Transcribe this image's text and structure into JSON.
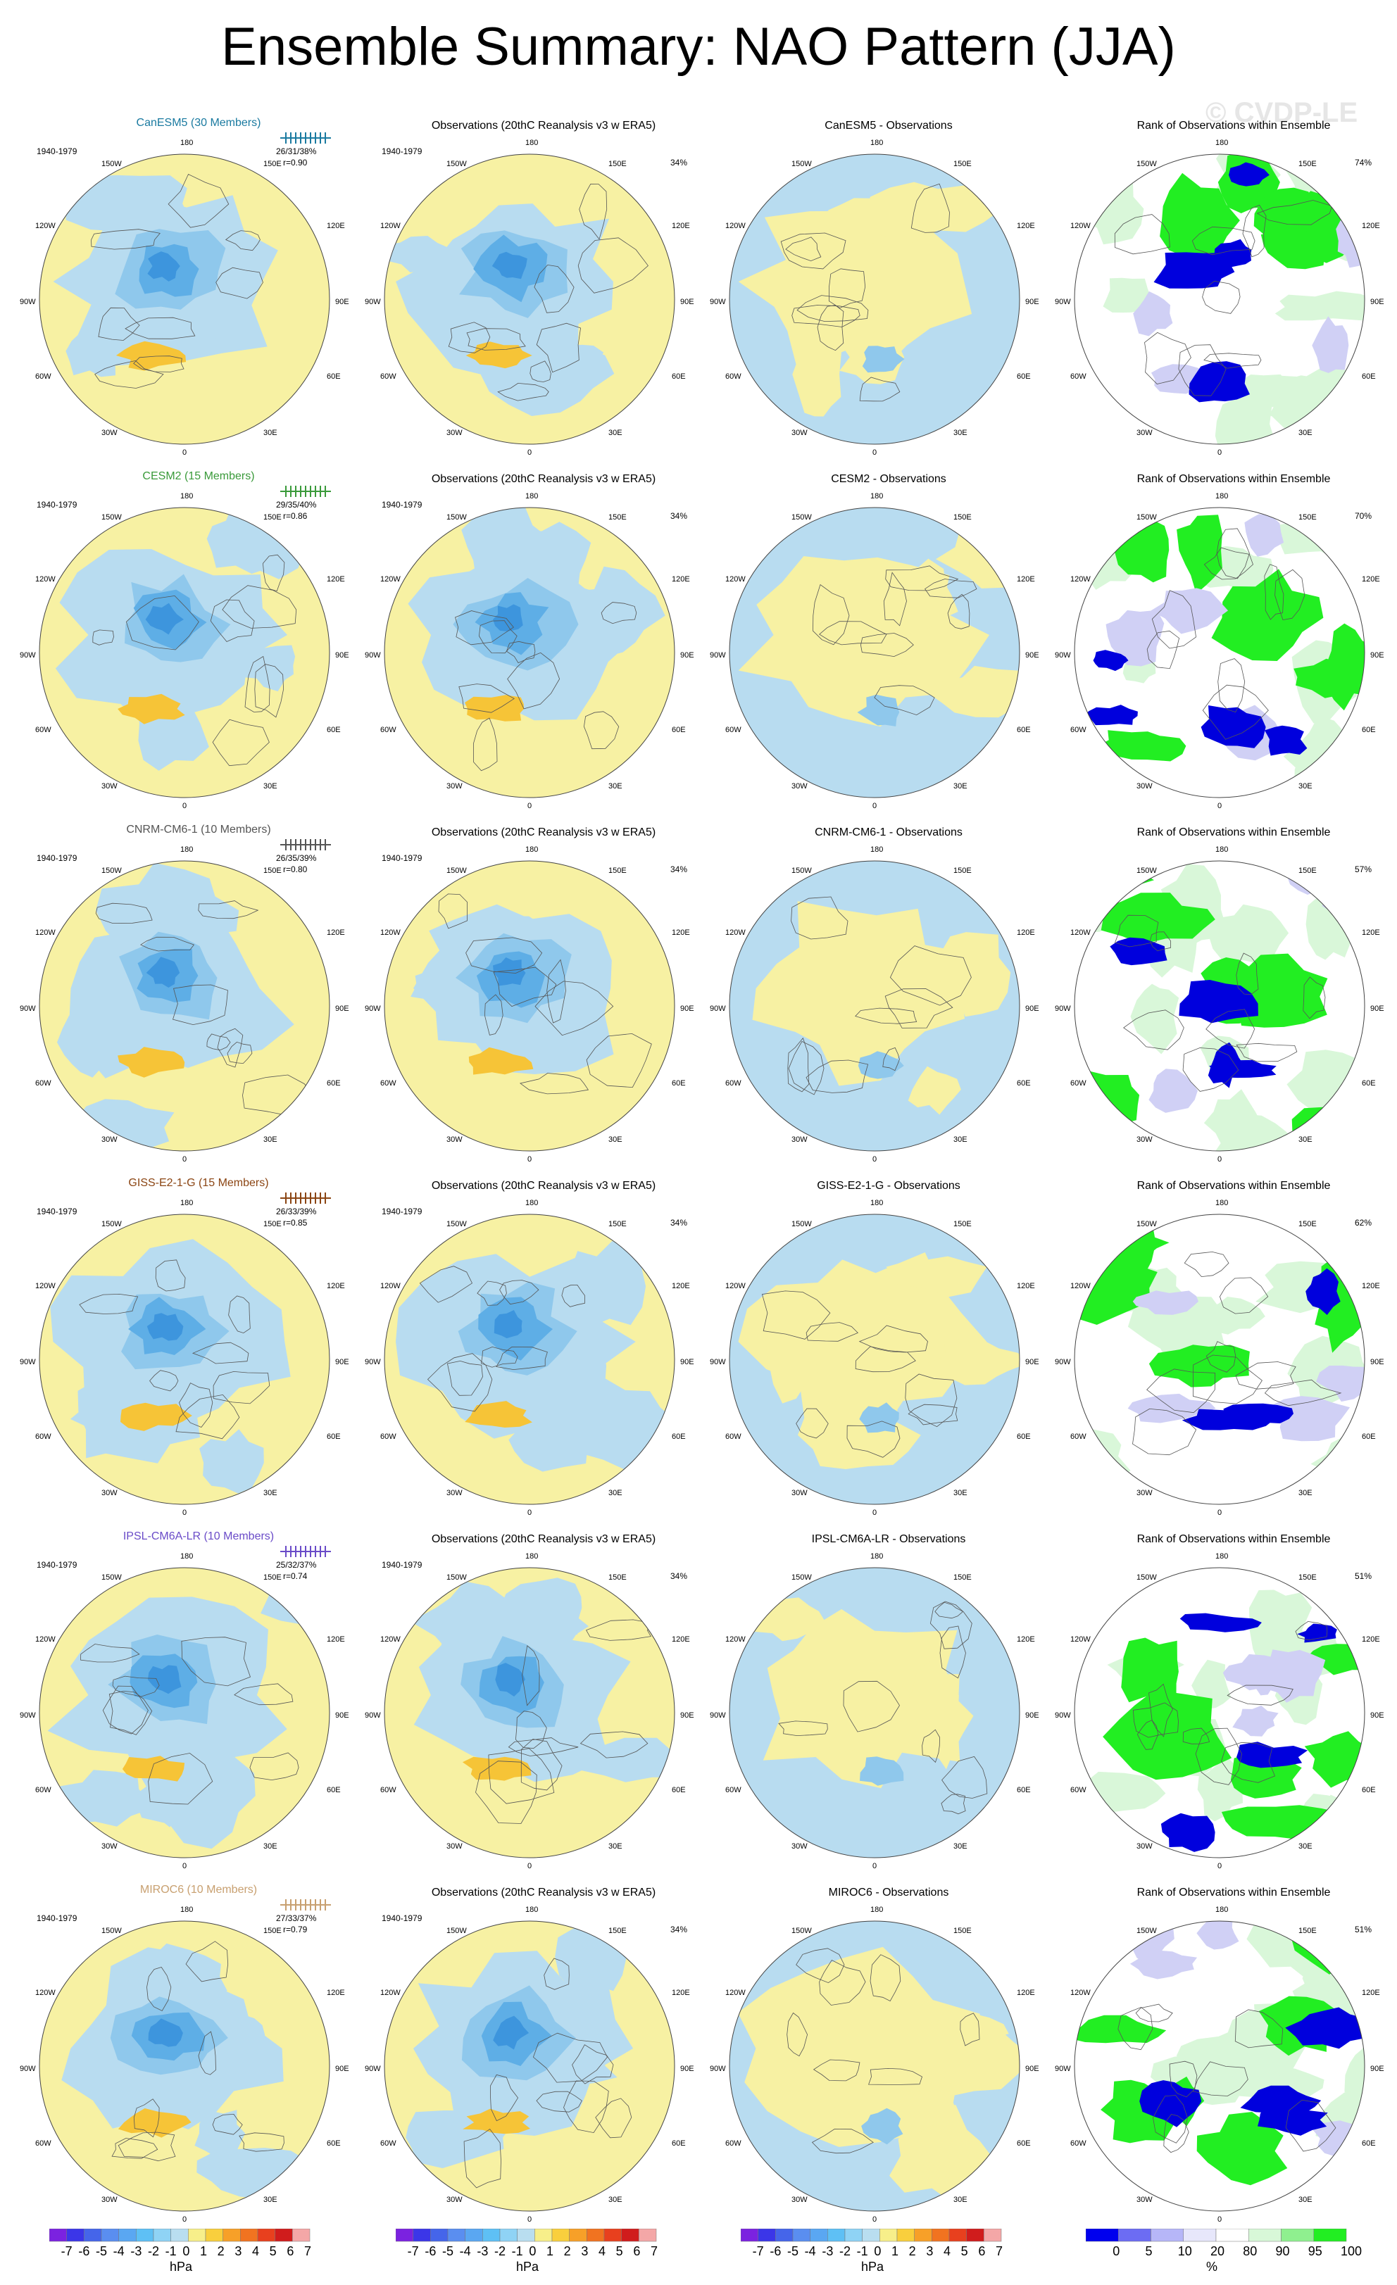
{
  "title": "Ensemble Summary: NAO Pattern (JJA)",
  "watermark": "© CVDP-LE",
  "period": "1940-1979",
  "lon_labels": [
    "180",
    "150W",
    "150E",
    "120W",
    "120E",
    "90W",
    "90E",
    "60W",
    "60E",
    "30W",
    "30E",
    "0"
  ],
  "obs_title": "Observations (20thC Reanalysis v3 w ERA5)",
  "obs_pct": "34%",
  "rank_title": "Rank of Observations within Ensemble",
  "models": [
    {
      "name": "CanESM5 (30 Members)",
      "color": "#1a7aa0",
      "stats": "26/31/38%",
      "r": "r=0.90",
      "diff_title": "CanESM5 - Observations",
      "rank_pct": "74%"
    },
    {
      "name": "CESM2 (15 Members)",
      "color": "#3a9a3a",
      "stats": "29/35/40%",
      "r": "r=0.86",
      "diff_title": "CESM2 - Observations",
      "rank_pct": "70%"
    },
    {
      "name": "CNRM-CM6-1 (10 Members)",
      "color": "#555555",
      "stats": "26/35/39%",
      "r": "r=0.80",
      "diff_title": "CNRM-CM6-1 - Observations",
      "rank_pct": "57%"
    },
    {
      "name": "GISS-E2-1-G (15 Members)",
      "color": "#8b4513",
      "stats": "26/33/39%",
      "r": "r=0.85",
      "diff_title": "GISS-E2-1-G - Observations",
      "rank_pct": "62%"
    },
    {
      "name": "IPSL-CM6A-LR (10 Members)",
      "color": "#6a4bc8",
      "stats": "25/32/37%",
      "r": "r=0.74",
      "diff_title": "IPSL-CM6A-LR - Observations",
      "rank_pct": "51%"
    },
    {
      "name": "MIROC6 (10 Members)",
      "color": "#c8a070",
      "stats": "27/33/37%",
      "r": "r=0.79",
      "diff_title": "MIROC6 - Observations",
      "rank_pct": "51%"
    }
  ],
  "colorbar": {
    "labels": [
      "-7",
      "-6",
      "-5",
      "-4",
      "-3",
      "-2",
      "-1",
      "0",
      "1",
      "2",
      "3",
      "4",
      "5",
      "6",
      "7"
    ],
    "unit": "hPa",
    "colors": [
      "#7b22e0",
      "#3b36e8",
      "#4565ea",
      "#5a8ef0",
      "#5aa7f2",
      "#5ec0f5",
      "#8fd3f5",
      "#b9def0",
      "#f7ef8a",
      "#f9cf3d",
      "#f7a028",
      "#f17320",
      "#e8401e",
      "#d01c1c",
      "#f4a7a7"
    ]
  },
  "rank_colorbar": {
    "labels": [
      "0",
      "5",
      "10",
      "20",
      "80",
      "90",
      "95",
      "100"
    ],
    "unit": "%",
    "colors": [
      "#0000ee",
      "#6c6cf3",
      "#b6b6f8",
      "#e7e7fb",
      "#ffffff",
      "#d8f8d8",
      "#8ff08f",
      "#22ee22"
    ]
  }
}
